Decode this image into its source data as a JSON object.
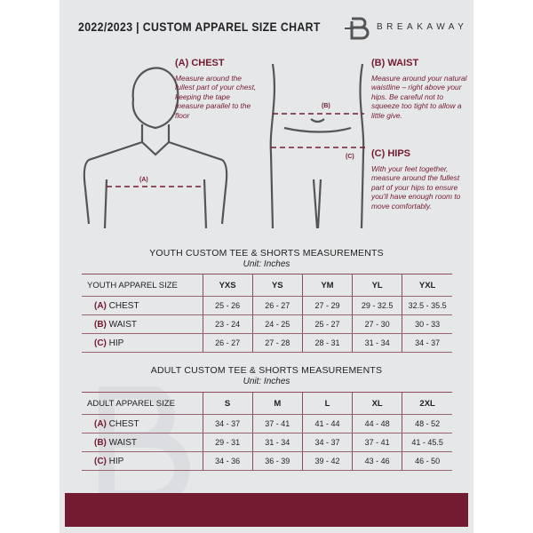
{
  "header": {
    "title": "2022/2023  |  CUSTOM APPAREL SIZE CHART",
    "brand": "BREAKAWAY",
    "brand_mark": "B"
  },
  "guide": {
    "chest": {
      "heading": "(A) CHEST",
      "text": "Measure around the fullest part of your chest, keeping the tape measure parallel to the floor",
      "marker": "(A)"
    },
    "waist": {
      "heading": "(B) WAIST",
      "text": "Measure around your natural waistline – right above your hips. Be careful not to squeeze too tight to allow a little give.",
      "marker": "(B)"
    },
    "hips": {
      "heading": "(C) HIPS",
      "text": "With your feet together, measure around the fullest part of your hips to ensure you'll have enough room to move comfortably.",
      "marker": "(C)"
    }
  },
  "youth": {
    "title": "YOUTH CUSTOM TEE & SHORTS MEASUREMENTS",
    "unit": "Unit: Inches",
    "header": [
      "YOUTH APPAREL SIZE",
      "YXS",
      "YS",
      "YM",
      "YL",
      "YXL"
    ],
    "rows": [
      {
        "code": "(A)",
        "label": "CHEST",
        "values": [
          "25 - 26",
          "26 - 27",
          "27 - 29",
          "29 - 32.5",
          "32.5 - 35.5"
        ]
      },
      {
        "code": "(B)",
        "label": "WAIST",
        "values": [
          "23 - 24",
          "24 - 25",
          "25 - 27",
          "27 - 30",
          "30 - 33"
        ]
      },
      {
        "code": "(C)",
        "label": "HIP",
        "values": [
          "26 - 27",
          "27 - 28",
          "28 - 31",
          "31 - 34",
          "34 - 37"
        ]
      }
    ]
  },
  "adult": {
    "title": "ADULT CUSTOM TEE & SHORTS MEASUREMENTS",
    "unit": "Unit: Inches",
    "header": [
      "ADULT APPAREL SIZE",
      "S",
      "M",
      "L",
      "XL",
      "2XL"
    ],
    "rows": [
      {
        "code": "(A)",
        "label": "CHEST",
        "values": [
          "34 - 37",
          "37 - 41",
          "41 - 44",
          "44 - 48",
          "48 - 52"
        ]
      },
      {
        "code": "(B)",
        "label": "WAIST",
        "values": [
          "29 - 31",
          "31 - 34",
          "34 - 37",
          "37 - 41",
          "41 - 45.5"
        ]
      },
      {
        "code": "(C)",
        "label": "HIP",
        "values": [
          "34 - 36",
          "36 - 39",
          "39 - 42",
          "43 - 46",
          "46 - 50"
        ]
      }
    ]
  },
  "colors": {
    "accent": "#731b30",
    "panel": "#e6e7e9"
  }
}
